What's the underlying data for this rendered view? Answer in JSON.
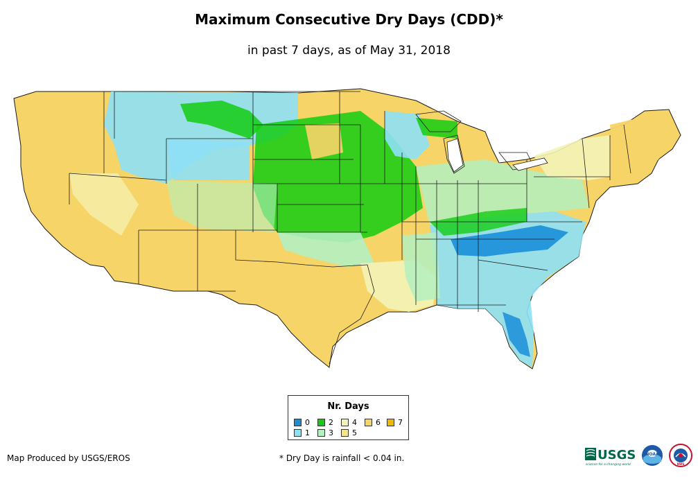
{
  "title": "Maximum Consecutive Dry Days (CDD)*",
  "subtitle": "in past 7 days, as of May 31, 2018",
  "legend": {
    "title": "Nr. Days",
    "items": [
      {
        "label": "0",
        "color": "#1a8fd8"
      },
      {
        "label": "1",
        "color": "#8ee0f5"
      },
      {
        "label": "2",
        "color": "#13cc13"
      },
      {
        "label": "3",
        "color": "#b3f0c0"
      },
      {
        "label": "4",
        "color": "#f3f3b7"
      },
      {
        "label": "5",
        "color": "#f8e58a"
      },
      {
        "label": "6",
        "color": "#f7d467"
      },
      {
        "label": "7",
        "color": "#f2b800"
      }
    ]
  },
  "footer": {
    "credit": "Map Produced by USGS/EROS",
    "note": "* Dry Day is rainfall < 0.04 in."
  },
  "logos": {
    "usgs": "USGS",
    "usgs_tagline": "science for a changing world",
    "noaa": "NOAA",
    "nws": "NWS"
  },
  "colors": {
    "map_base": "#f7d467",
    "state_border": "#1a1a1a"
  }
}
